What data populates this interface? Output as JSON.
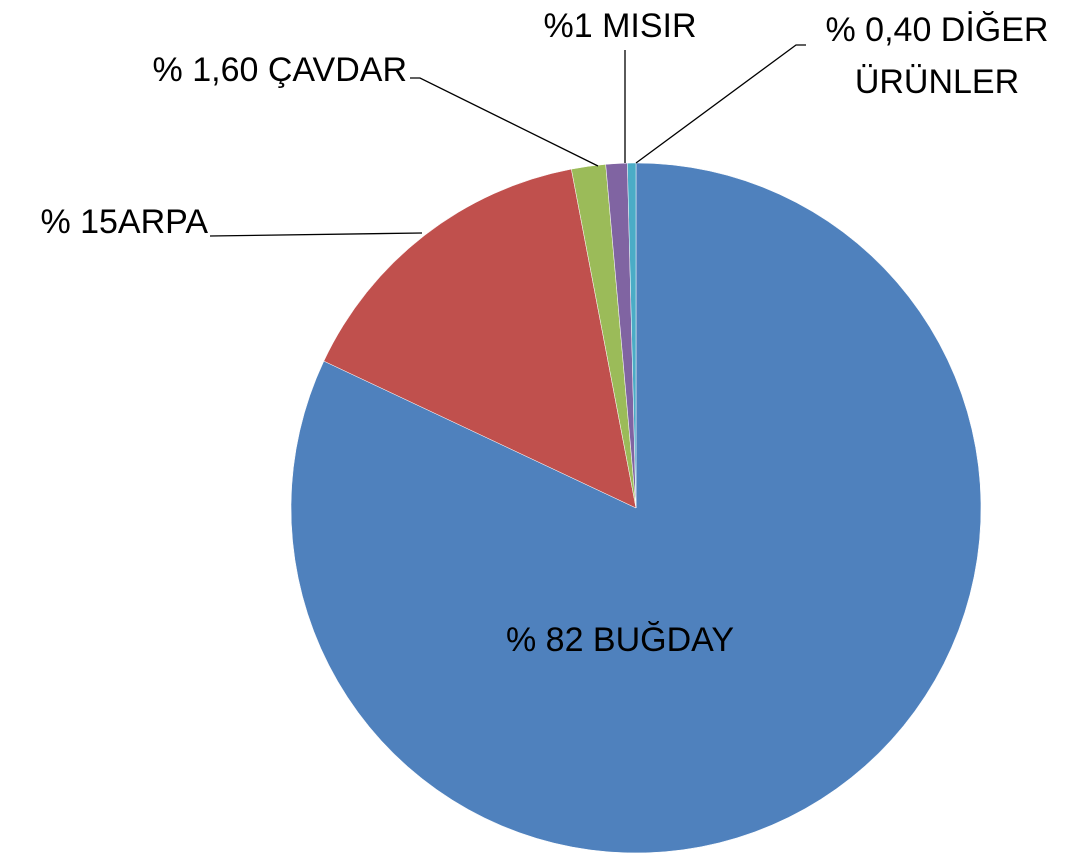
{
  "chart_data": {
    "type": "pie",
    "values": [
      82,
      15,
      1.6,
      1,
      0.4
    ],
    "value_labels": [
      "% 82 BUĞDAY",
      "% 15ARPA",
      "% 1,60 ÇAVDAR",
      "%1 MISIR",
      "% 0,40 DİĞER ÜRÜNLER"
    ],
    "colors": [
      "#4f81bd",
      "#c0504d",
      "#9bbb59",
      "#8064a2",
      "#4bacc6"
    ]
  }
}
